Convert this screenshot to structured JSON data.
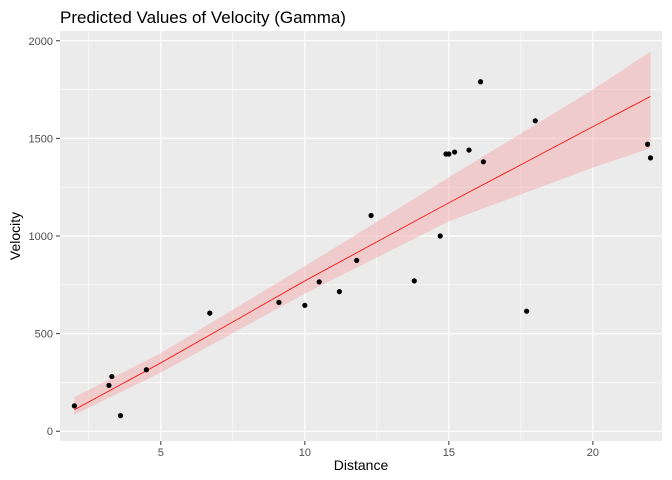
{
  "chart_data": {
    "type": "scatter",
    "title": "Predicted Values of Velocity (Gamma)",
    "xlabel": "Distance",
    "ylabel": "Velocity",
    "xlim": [
      1.5,
      22.4
    ],
    "ylim": [
      -50,
      2050
    ],
    "x_ticks": [
      5,
      10,
      15,
      20
    ],
    "y_ticks": [
      0,
      500,
      1000,
      1500,
      2000
    ],
    "grid": true,
    "colors": {
      "panel": "#ebebeb",
      "grid": "#ffffff",
      "points": "#000000",
      "fit_line": "#ff0000",
      "ribbon": "#f4a3a3"
    },
    "points": [
      {
        "x": 2.0,
        "y": 130
      },
      {
        "x": 3.2,
        "y": 235
      },
      {
        "x": 3.3,
        "y": 280
      },
      {
        "x": 3.6,
        "y": 80
      },
      {
        "x": 4.5,
        "y": 315
      },
      {
        "x": 6.7,
        "y": 605
      },
      {
        "x": 9.1,
        "y": 660
      },
      {
        "x": 10.0,
        "y": 645
      },
      {
        "x": 10.5,
        "y": 765
      },
      {
        "x": 11.2,
        "y": 715
      },
      {
        "x": 11.8,
        "y": 875
      },
      {
        "x": 12.3,
        "y": 1105
      },
      {
        "x": 13.8,
        "y": 770
      },
      {
        "x": 14.7,
        "y": 1000
      },
      {
        "x": 14.9,
        "y": 1420
      },
      {
        "x": 15.0,
        "y": 1420
      },
      {
        "x": 15.2,
        "y": 1430
      },
      {
        "x": 15.7,
        "y": 1440
      },
      {
        "x": 16.1,
        "y": 1790
      },
      {
        "x": 16.2,
        "y": 1380
      },
      {
        "x": 17.7,
        "y": 615
      },
      {
        "x": 18.0,
        "y": 1590
      },
      {
        "x": 21.9,
        "y": 1470
      },
      {
        "x": 22.0,
        "y": 1400
      }
    ],
    "fit": [
      {
        "x": 2.0,
        "y": 110,
        "lower": 85,
        "upper": 175
      },
      {
        "x": 5.0,
        "y": 350,
        "lower": 300,
        "upper": 400
      },
      {
        "x": 10.0,
        "y": 770,
        "lower": 705,
        "upper": 845
      },
      {
        "x": 15.0,
        "y": 1170,
        "lower": 1075,
        "upper": 1300
      },
      {
        "x": 20.0,
        "y": 1560,
        "lower": 1350,
        "upper": 1750
      },
      {
        "x": 22.0,
        "y": 1715,
        "lower": 1450,
        "upper": 1945
      }
    ]
  }
}
